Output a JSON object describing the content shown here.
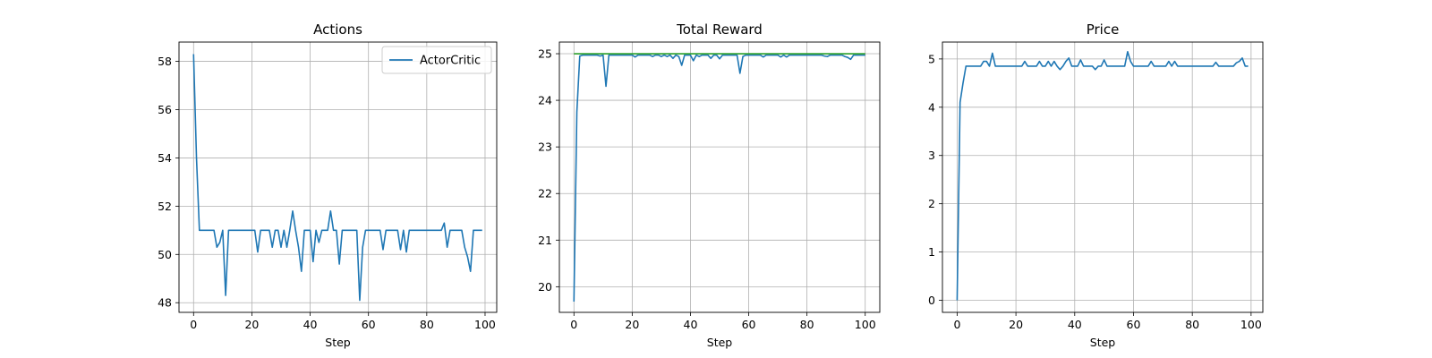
{
  "chart_data": [
    {
      "type": "line",
      "title": "Actions",
      "xlabel": "Step",
      "ylabel": "",
      "xlim": [
        -5,
        104
      ],
      "ylim": [
        47.6,
        58.8
      ],
      "xticks": [
        0,
        20,
        40,
        60,
        80,
        100
      ],
      "yticks": [
        48,
        50,
        52,
        54,
        56,
        58
      ],
      "grid": true,
      "legend": {
        "position": "upper right",
        "entries": [
          "ActorCritic"
        ]
      },
      "series": [
        {
          "name": "ActorCritic",
          "color": "#1f77b4",
          "x": [
            0,
            1,
            2,
            3,
            4,
            5,
            6,
            7,
            8,
            9,
            10,
            11,
            12,
            13,
            14,
            15,
            16,
            17,
            18,
            19,
            20,
            21,
            22,
            23,
            24,
            25,
            26,
            27,
            28,
            29,
            30,
            31,
            32,
            33,
            34,
            35,
            36,
            37,
            38,
            39,
            40,
            41,
            42,
            43,
            44,
            45,
            46,
            47,
            48,
            49,
            50,
            51,
            52,
            53,
            54,
            55,
            56,
            57,
            58,
            59,
            60,
            61,
            62,
            63,
            64,
            65,
            66,
            67,
            68,
            69,
            70,
            71,
            72,
            73,
            74,
            75,
            76,
            77,
            78,
            79,
            80,
            81,
            82,
            83,
            84,
            85,
            86,
            87,
            88,
            89,
            90,
            91,
            92,
            93,
            94,
            95,
            96,
            97,
            98,
            99
          ],
          "values": [
            58.3,
            54.0,
            51.0,
            51.0,
            51.0,
            51.0,
            51.0,
            51.0,
            50.3,
            50.5,
            51.0,
            48.3,
            51.0,
            51.0,
            51.0,
            51.0,
            51.0,
            51.0,
            51.0,
            51.0,
            51.0,
            51.0,
            50.1,
            51.0,
            51.0,
            51.0,
            51.0,
            50.3,
            51.0,
            51.0,
            50.3,
            51.0,
            50.3,
            51.0,
            51.8,
            51.0,
            50.3,
            49.3,
            51.0,
            51.0,
            51.0,
            49.7,
            51.0,
            50.5,
            51.0,
            51.0,
            51.0,
            51.8,
            51.0,
            51.0,
            49.6,
            51.0,
            51.0,
            51.0,
            51.0,
            51.0,
            51.0,
            48.1,
            50.3,
            51.0,
            51.0,
            51.0,
            51.0,
            51.0,
            51.0,
            50.2,
            51.0,
            51.0,
            51.0,
            51.0,
            51.0,
            50.2,
            51.0,
            50.1,
            51.0,
            51.0,
            51.0,
            51.0,
            51.0,
            51.0,
            51.0,
            51.0,
            51.0,
            51.0,
            51.0,
            51.0,
            51.3,
            50.3,
            51.0,
            51.0,
            51.0,
            51.0,
            51.0,
            50.3,
            49.9,
            49.3,
            51.0,
            51.0,
            51.0,
            51.0
          ]
        }
      ]
    },
    {
      "type": "line",
      "title": "Total Reward",
      "xlabel": "Step",
      "ylabel": "",
      "xlim": [
        -5,
        105
      ],
      "ylim": [
        19.45,
        25.25
      ],
      "xticks": [
        0,
        20,
        40,
        60,
        80,
        100
      ],
      "yticks": [
        20,
        21,
        22,
        23,
        24,
        25
      ],
      "grid": true,
      "series": [
        {
          "color": "#1f77b4",
          "x": [
            0,
            1,
            2,
            3,
            4,
            5,
            6,
            7,
            8,
            9,
            10,
            11,
            12,
            13,
            14,
            15,
            16,
            17,
            18,
            19,
            20,
            21,
            22,
            23,
            24,
            25,
            26,
            27,
            28,
            29,
            30,
            31,
            32,
            33,
            34,
            35,
            36,
            37,
            38,
            39,
            40,
            41,
            42,
            43,
            44,
            45,
            46,
            47,
            48,
            49,
            50,
            51,
            52,
            53,
            54,
            55,
            56,
            57,
            58,
            59,
            60,
            61,
            62,
            63,
            64,
            65,
            66,
            67,
            68,
            69,
            70,
            71,
            72,
            73,
            74,
            75,
            76,
            77,
            78,
            79,
            80,
            81,
            82,
            83,
            84,
            85,
            86,
            87,
            88,
            89,
            90,
            91,
            92,
            93,
            94,
            95,
            96,
            97,
            98,
            99,
            100
          ],
          "values": [
            19.68,
            23.75,
            24.95,
            24.97,
            24.97,
            24.97,
            24.97,
            24.97,
            24.97,
            24.95,
            24.97,
            24.3,
            24.97,
            24.97,
            24.97,
            24.97,
            24.97,
            24.97,
            24.97,
            24.97,
            24.97,
            24.93,
            24.97,
            24.97,
            24.97,
            24.97,
            24.97,
            24.94,
            24.97,
            24.97,
            24.94,
            24.97,
            24.94,
            24.97,
            24.9,
            24.97,
            24.94,
            24.75,
            24.97,
            24.97,
            24.97,
            24.85,
            24.97,
            24.94,
            24.97,
            24.97,
            24.97,
            24.9,
            24.97,
            24.97,
            24.89,
            24.97,
            24.97,
            24.97,
            24.97,
            24.97,
            24.97,
            24.58,
            24.94,
            24.97,
            24.97,
            24.97,
            24.97,
            24.97,
            24.97,
            24.93,
            24.97,
            24.97,
            24.97,
            24.97,
            24.97,
            24.93,
            24.97,
            24.93,
            24.97,
            24.97,
            24.97,
            24.97,
            24.97,
            24.97,
            24.97,
            24.97,
            24.97,
            24.97,
            24.97,
            24.97,
            24.95,
            24.94,
            24.97,
            24.97,
            24.97,
            24.97,
            24.97,
            24.94,
            24.92,
            24.88,
            24.97,
            24.97,
            24.97,
            24.97,
            24.97
          ]
        },
        {
          "color": "#2ca02c",
          "x": [
            0,
            100
          ],
          "values": [
            25.0,
            25.0
          ]
        }
      ]
    },
    {
      "type": "line",
      "title": "Price",
      "xlabel": "Step",
      "ylabel": "",
      "xlim": [
        -5,
        104
      ],
      "ylim": [
        -0.25,
        5.35
      ],
      "xticks": [
        0,
        20,
        40,
        60,
        80,
        100
      ],
      "yticks": [
        0,
        1,
        2,
        3,
        4,
        5
      ],
      "grid": true,
      "series": [
        {
          "color": "#1f77b4",
          "x": [
            0,
            1,
            2,
            3,
            4,
            5,
            6,
            7,
            8,
            9,
            10,
            11,
            12,
            13,
            14,
            15,
            16,
            17,
            18,
            19,
            20,
            21,
            22,
            23,
            24,
            25,
            26,
            27,
            28,
            29,
            30,
            31,
            32,
            33,
            34,
            35,
            36,
            37,
            38,
            39,
            40,
            41,
            42,
            43,
            44,
            45,
            46,
            47,
            48,
            49,
            50,
            51,
            52,
            53,
            54,
            55,
            56,
            57,
            58,
            59,
            60,
            61,
            62,
            63,
            64,
            65,
            66,
            67,
            68,
            69,
            70,
            71,
            72,
            73,
            74,
            75,
            76,
            77,
            78,
            79,
            80,
            81,
            82,
            83,
            84,
            85,
            86,
            87,
            88,
            89,
            90,
            91,
            92,
            93,
            94,
            95,
            96,
            97,
            98,
            99
          ],
          "values": [
            0.0,
            4.1,
            4.5,
            4.85,
            4.85,
            4.85,
            4.85,
            4.85,
            4.85,
            4.95,
            4.95,
            4.85,
            5.12,
            4.85,
            4.85,
            4.85,
            4.85,
            4.85,
            4.85,
            4.85,
            4.85,
            4.85,
            4.85,
            4.95,
            4.85,
            4.85,
            4.85,
            4.85,
            4.95,
            4.85,
            4.85,
            4.95,
            4.85,
            4.95,
            4.85,
            4.78,
            4.85,
            4.95,
            5.02,
            4.85,
            4.85,
            4.85,
            4.98,
            4.85,
            4.85,
            4.85,
            4.85,
            4.78,
            4.85,
            4.85,
            4.98,
            4.85,
            4.85,
            4.85,
            4.85,
            4.85,
            4.85,
            4.85,
            5.15,
            4.95,
            4.85,
            4.85,
            4.85,
            4.85,
            4.85,
            4.85,
            4.95,
            4.85,
            4.85,
            4.85,
            4.85,
            4.85,
            4.95,
            4.85,
            4.95,
            4.85,
            4.85,
            4.85,
            4.85,
            4.85,
            4.85,
            4.85,
            4.85,
            4.85,
            4.85,
            4.85,
            4.85,
            4.85,
            4.93,
            4.85,
            4.85,
            4.85,
            4.85,
            4.85,
            4.85,
            4.92,
            4.95,
            5.02,
            4.85,
            4.85
          ]
        }
      ]
    }
  ]
}
